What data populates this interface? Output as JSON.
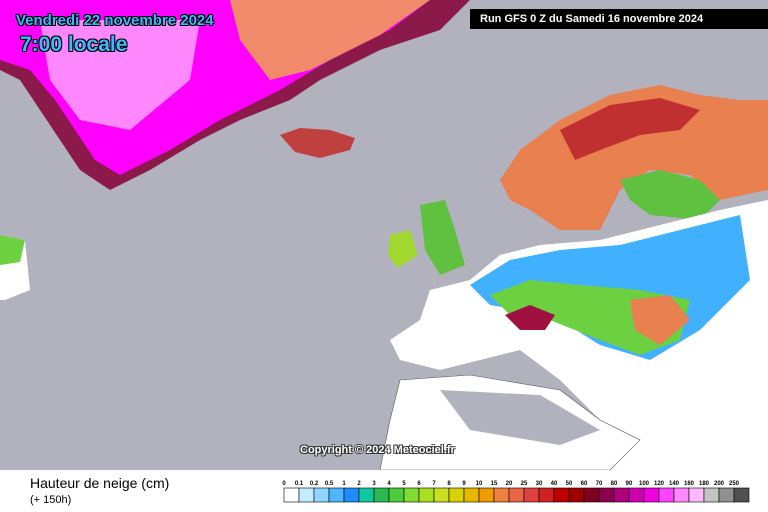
{
  "header": {
    "date": "Vendredi 22 novembre 2024",
    "time": "7:00 locale",
    "run": "Run GFS 0 Z du Samedi 16 novembre 2024"
  },
  "copyright": "Copyright © 2024 Meteociel.fr",
  "legend": {
    "title": "Hauteur de neige (cm)",
    "subtitle": "(+ 150h)",
    "labels": [
      0,
      0.1,
      0.2,
      0.5,
      1,
      2,
      3,
      4,
      5,
      6,
      7,
      8,
      9,
      10,
      15,
      20,
      25,
      30,
      40,
      50,
      60,
      70,
      80,
      90,
      100,
      120,
      140,
      160,
      180,
      200,
      250
    ],
    "colors": [
      "#ffffff",
      "#c4ecff",
      "#8ed6ff",
      "#4cb6ff",
      "#1e8cff",
      "#10c8a0",
      "#2cb850",
      "#4ccc3c",
      "#80dc30",
      "#a8e020",
      "#c8e020",
      "#d8d000",
      "#e6b800",
      "#f09c00",
      "#f08040",
      "#ec6448",
      "#e04040",
      "#d02020",
      "#c00000",
      "#a00000",
      "#800020",
      "#8c0050",
      "#b00080",
      "#d000b0",
      "#f000e0",
      "#ff44ff",
      "#ff88ff",
      "#ffb8ff",
      "#c4c4c4",
      "#909090",
      "#505050"
    ]
  }
}
